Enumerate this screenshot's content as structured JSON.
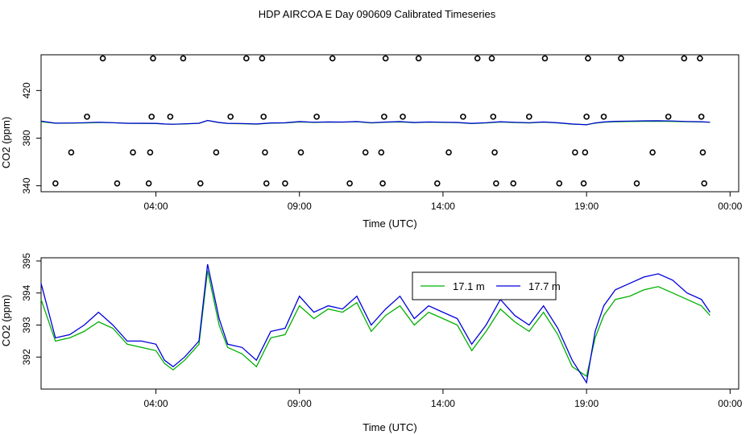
{
  "title": "HDP AIRCOA E  Day 090609  Calibrated Timeseries",
  "chart_data": [
    {
      "type": "scatter+line",
      "xlabel": "Time (UTC)",
      "ylabel": "CO2 (ppm)",
      "xlim": [
        -4,
        20.3
      ],
      "ylim": [
        335,
        450
      ],
      "xticks": [
        {
          "value": 0,
          "label": "04:00"
        },
        {
          "value": 5,
          "label": "09:00"
        },
        {
          "value": 10,
          "label": "14:00"
        },
        {
          "value": 15,
          "label": "19:00"
        },
        {
          "value": 20,
          "label": "00:00"
        }
      ],
      "yticks": [
        {
          "value": 340,
          "label": "340"
        },
        {
          "value": 380,
          "label": "380"
        },
        {
          "value": 420,
          "label": "420"
        }
      ],
      "calibration_points": [
        [
          -3.5,
          342
        ],
        [
          -2.95,
          368
        ],
        [
          -2.4,
          398
        ],
        [
          -1.85,
          447
        ],
        [
          -1.35,
          342
        ],
        [
          -0.8,
          368
        ],
        [
          -0.25,
          342
        ],
        [
          -0.2,
          368
        ],
        [
          -0.15,
          398
        ],
        [
          -0.1,
          447
        ],
        [
          0.5,
          398
        ],
        [
          0.95,
          447
        ],
        [
          1.55,
          342
        ],
        [
          2.1,
          368
        ],
        [
          2.6,
          398
        ],
        [
          3.15,
          447
        ],
        [
          3.7,
          447
        ],
        [
          3.75,
          398
        ],
        [
          3.8,
          368
        ],
        [
          3.85,
          342
        ],
        [
          4.5,
          342
        ],
        [
          5.05,
          368
        ],
        [
          5.6,
          398
        ],
        [
          6.15,
          447
        ],
        [
          6.75,
          342
        ],
        [
          7.3,
          368
        ],
        [
          7.85,
          368
        ],
        [
          7.9,
          342
        ],
        [
          7.95,
          398
        ],
        [
          8.0,
          447
        ],
        [
          8.6,
          398
        ],
        [
          9.15,
          447
        ],
        [
          9.8,
          342
        ],
        [
          10.2,
          368
        ],
        [
          10.7,
          398
        ],
        [
          11.2,
          447
        ],
        [
          11.7,
          447
        ],
        [
          11.75,
          398
        ],
        [
          11.8,
          368
        ],
        [
          11.85,
          342
        ],
        [
          12.45,
          342
        ],
        [
          13.0,
          398
        ],
        [
          13.55,
          447
        ],
        [
          14.05,
          342
        ],
        [
          14.6,
          368
        ],
        [
          14.9,
          342
        ],
        [
          14.95,
          368
        ],
        [
          15.0,
          398
        ],
        [
          15.05,
          447
        ],
        [
          15.6,
          398
        ],
        [
          16.2,
          447
        ],
        [
          16.75,
          342
        ],
        [
          17.3,
          368
        ],
        [
          17.85,
          398
        ],
        [
          18.4,
          447
        ],
        [
          18.95,
          447
        ],
        [
          19.0,
          398
        ],
        [
          19.05,
          368
        ],
        [
          19.1,
          342
        ]
      ]
    },
    {
      "type": "line",
      "xlabel": "Time (UTC)",
      "ylabel": "CO2 (ppm)",
      "xlim": [
        -4,
        20.3
      ],
      "ylim": [
        391.0,
        395.1
      ],
      "xticks": [
        {
          "value": 0,
          "label": "04:00"
        },
        {
          "value": 5,
          "label": "09:00"
        },
        {
          "value": 10,
          "label": "14:00"
        },
        {
          "value": 15,
          "label": "19:00"
        },
        {
          "value": 20,
          "label": "00:00"
        }
      ],
      "yticks": [
        {
          "value": 392,
          "label": "392"
        },
        {
          "value": 393,
          "label": "393"
        },
        {
          "value": 394,
          "label": "394"
        },
        {
          "value": 395,
          "label": "395"
        }
      ],
      "legend": [
        "17.1 m",
        "17.7 m"
      ],
      "legend_position": "top-center",
      "series": [
        {
          "name": "17.1 m",
          "color": "#00b000",
          "x": [
            -4.0,
            -3.5,
            -3.0,
            -2.5,
            -2.0,
            -1.5,
            -1.0,
            -0.5,
            0.0,
            0.3,
            0.6,
            1.0,
            1.5,
            1.8,
            2.2,
            2.5,
            3.0,
            3.5,
            4.0,
            4.5,
            5.0,
            5.5,
            6.0,
            6.5,
            7.0,
            7.5,
            8.0,
            8.5,
            9.0,
            9.5,
            10.0,
            10.5,
            11.0,
            11.5,
            12.0,
            12.5,
            13.0,
            13.5,
            14.0,
            14.5,
            15.0,
            15.3,
            15.6,
            16.0,
            16.5,
            17.0,
            17.5,
            18.0,
            18.5,
            19.0,
            19.3
          ],
          "y": [
            393.8,
            392.5,
            392.6,
            392.8,
            393.1,
            392.9,
            392.4,
            392.3,
            392.2,
            391.8,
            391.6,
            391.9,
            392.4,
            394.7,
            393.0,
            392.3,
            392.1,
            391.7,
            392.6,
            392.7,
            393.6,
            393.2,
            393.5,
            393.4,
            393.7,
            392.8,
            393.3,
            393.6,
            393.0,
            393.4,
            393.2,
            393.0,
            392.2,
            392.8,
            393.5,
            393.1,
            392.8,
            393.4,
            392.7,
            391.7,
            391.4,
            392.6,
            393.3,
            393.8,
            393.9,
            394.1,
            394.2,
            394.0,
            393.8,
            393.6,
            393.3
          ]
        },
        {
          "name": "17.7 m",
          "color": "#0000dd",
          "x": [
            -4.0,
            -3.5,
            -3.0,
            -2.5,
            -2.0,
            -1.5,
            -1.0,
            -0.5,
            0.0,
            0.3,
            0.6,
            1.0,
            1.5,
            1.8,
            2.2,
            2.5,
            3.0,
            3.5,
            4.0,
            4.5,
            5.0,
            5.5,
            6.0,
            6.5,
            7.0,
            7.5,
            8.0,
            8.5,
            9.0,
            9.5,
            10.0,
            10.5,
            11.0,
            11.5,
            12.0,
            12.5,
            13.0,
            13.5,
            14.0,
            14.5,
            15.0,
            15.3,
            15.6,
            16.0,
            16.5,
            17.0,
            17.5,
            18.0,
            18.5,
            19.0,
            19.3
          ],
          "y": [
            394.3,
            392.6,
            392.7,
            393.0,
            393.4,
            393.0,
            392.5,
            392.5,
            392.4,
            391.9,
            391.7,
            392.0,
            392.5,
            394.9,
            393.2,
            392.4,
            392.3,
            391.9,
            392.8,
            392.9,
            393.9,
            393.4,
            393.6,
            393.5,
            393.9,
            393.0,
            393.5,
            393.9,
            393.2,
            393.6,
            393.4,
            393.2,
            392.4,
            393.0,
            393.8,
            393.3,
            393.0,
            393.6,
            392.9,
            391.9,
            391.2,
            392.8,
            393.6,
            394.1,
            394.3,
            394.5,
            394.6,
            394.4,
            394.0,
            393.8,
            393.4
          ]
        }
      ]
    }
  ]
}
